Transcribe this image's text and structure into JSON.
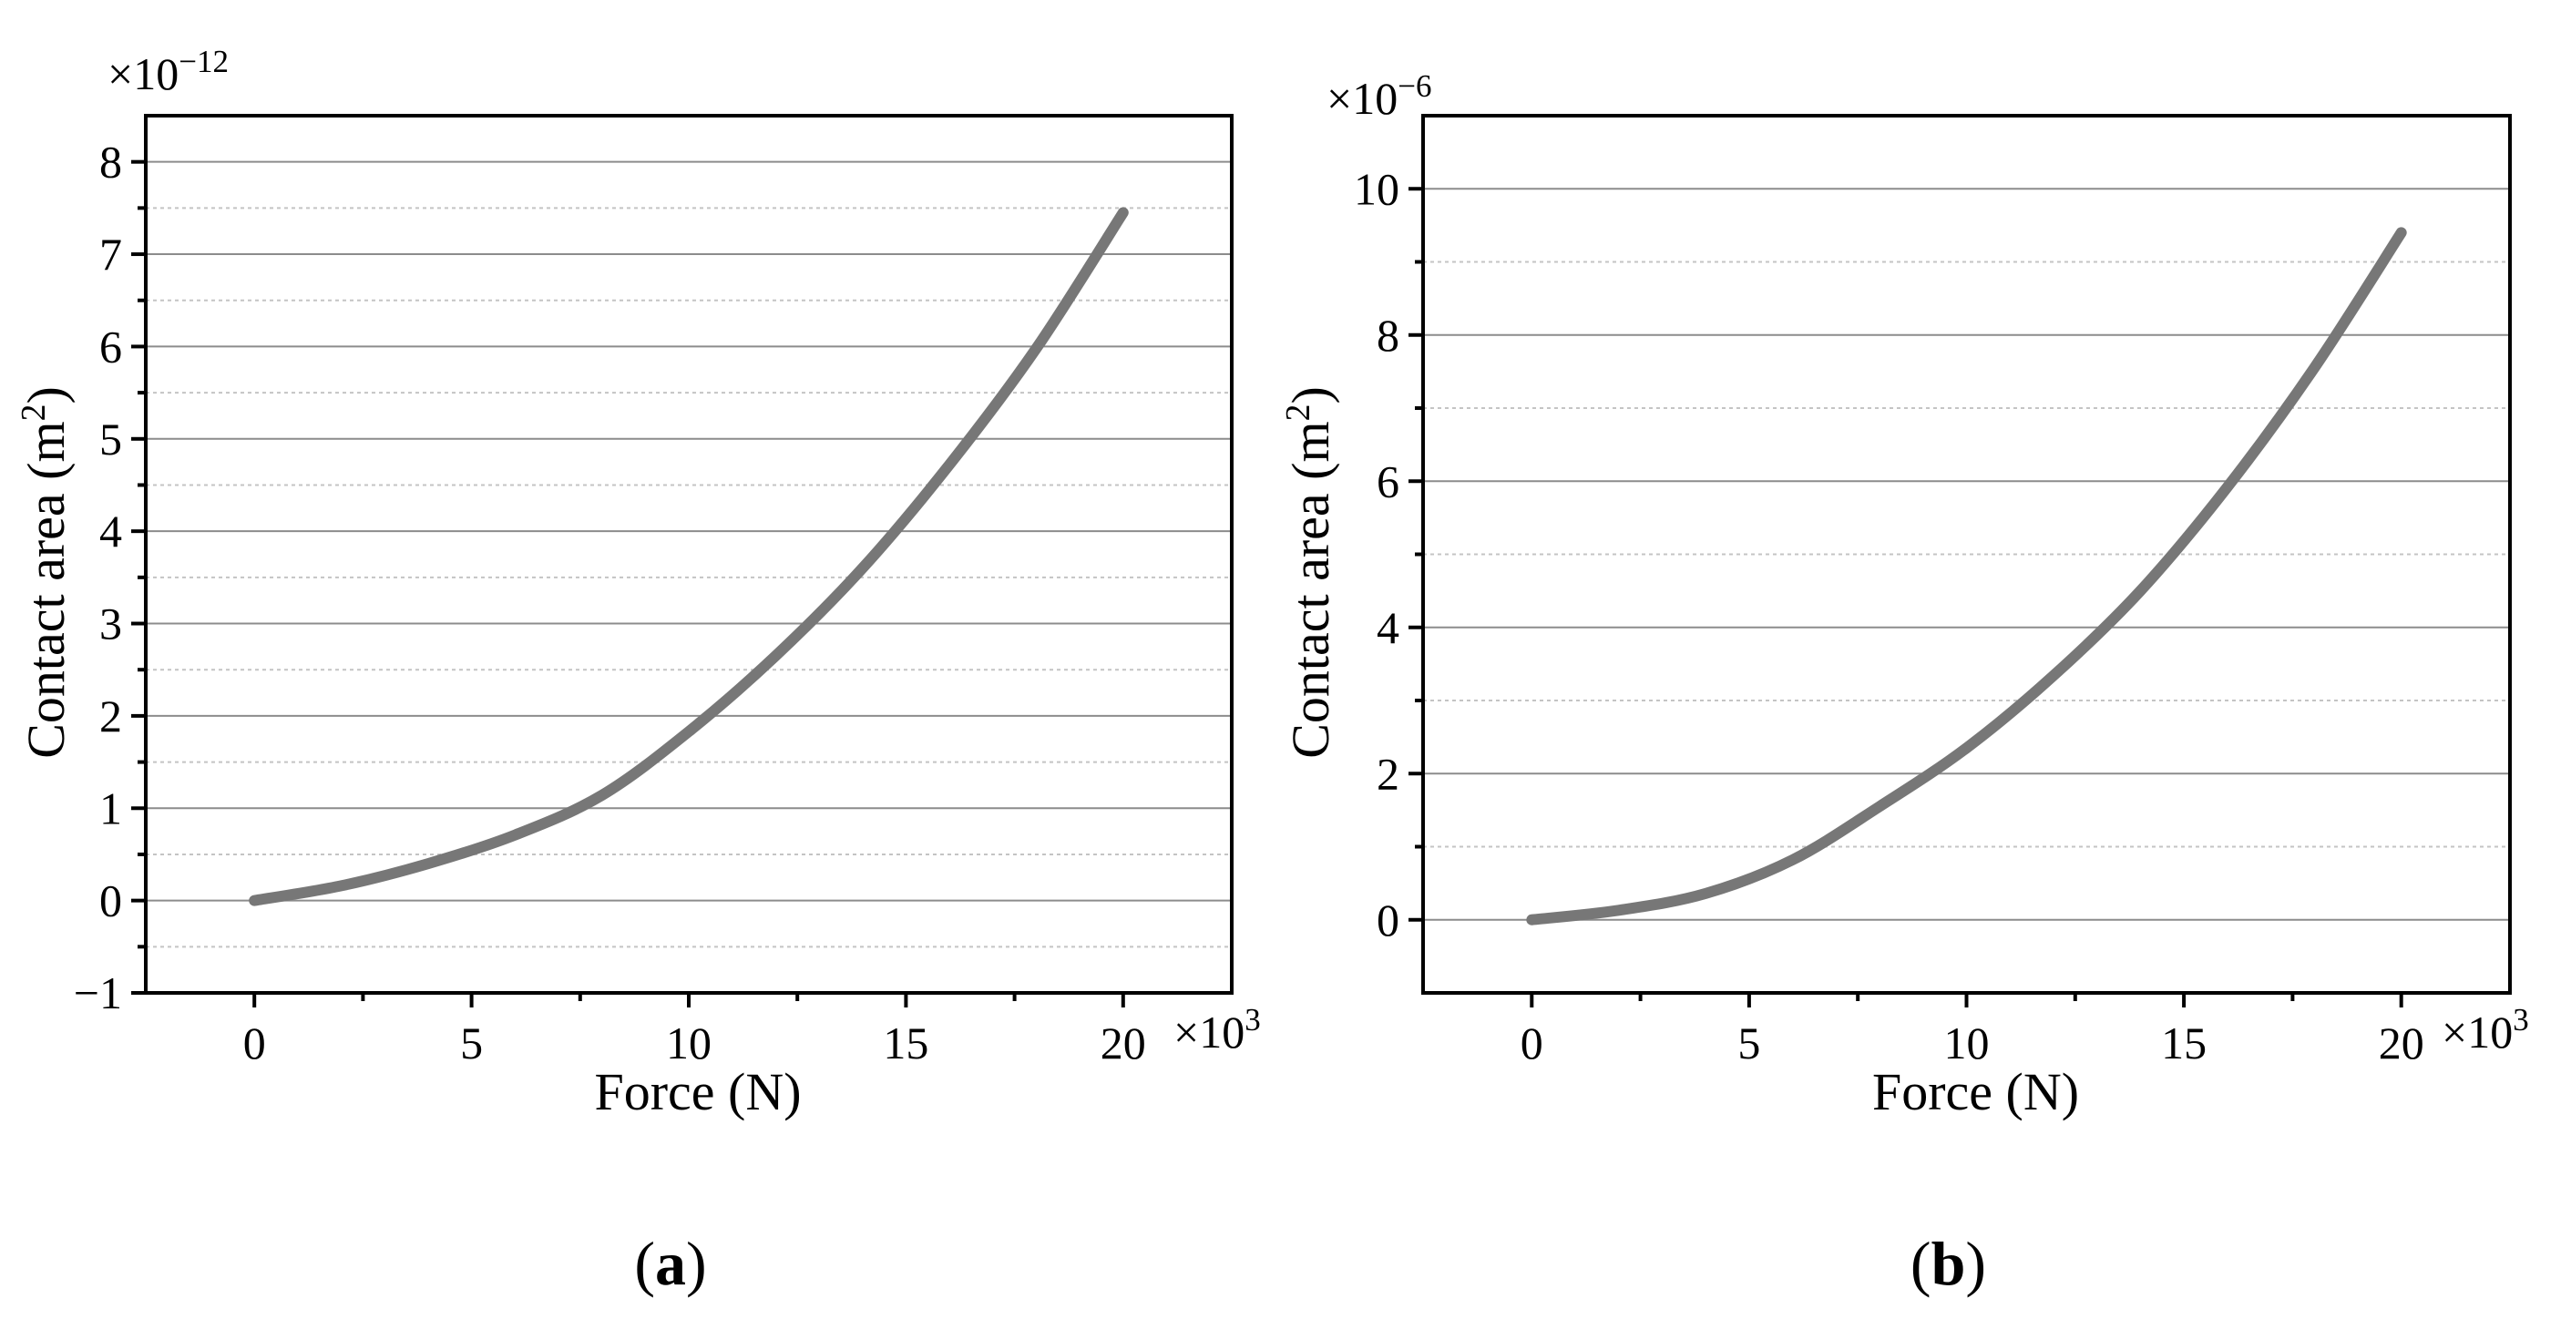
{
  "colors": {
    "curve": "#777777"
  },
  "chart_data": [
    {
      "type": "line",
      "panel_label": "a",
      "xlabel": "Force (N)",
      "ylabel": "Contact area",
      "ylabel_unit": "m",
      "ylabel_unit_exp": "2",
      "x_multiplier": "×10",
      "x_multiplier_exp": "3",
      "y_multiplier": "×10",
      "y_multiplier_exp": "−12",
      "xlim": [
        -2.5,
        22.5
      ],
      "ylim": [
        -1,
        8.5
      ],
      "x_ticks": [
        0,
        5,
        10,
        15,
        20
      ],
      "x_tick_labels": [
        "0",
        "5",
        "10",
        "15",
        "20"
      ],
      "y_ticks": [
        -1,
        0,
        1,
        2,
        3,
        4,
        5,
        6,
        7,
        8
      ],
      "y_tick_labels": [
        "−1",
        "0",
        "1",
        "2",
        "3",
        "4",
        "5",
        "6",
        "7",
        "8"
      ],
      "grid": "horizontal, major solid and minor dashed",
      "series": [
        {
          "x": [
            0,
            2,
            4,
            6,
            8,
            10,
            12,
            14,
            16,
            18,
            20
          ],
          "y": [
            0,
            0.16,
            0.4,
            0.71,
            1.14,
            1.83,
            2.65,
            3.6,
            4.72,
            5.98,
            7.45
          ]
        }
      ]
    },
    {
      "type": "line",
      "panel_label": "b",
      "xlabel": "Force (N)",
      "ylabel": "Contact area",
      "ylabel_unit": "m",
      "ylabel_unit_exp": "2",
      "x_multiplier": "×10",
      "x_multiplier_exp": "3",
      "y_multiplier": "×10",
      "y_multiplier_exp": "−6",
      "xlim": [
        -2.5,
        22.5
      ],
      "ylim": [
        -1,
        11
      ],
      "x_ticks": [
        0,
        5,
        10,
        15,
        20
      ],
      "x_tick_labels": [
        "0",
        "5",
        "10",
        "15",
        "20"
      ],
      "y_ticks": [
        0,
        2,
        4,
        6,
        8,
        10
      ],
      "y_tick_labels": [
        "0",
        "2",
        "4",
        "6",
        "8",
        "10"
      ],
      "grid": "horizontal, major solid and minor dashed",
      "series": [
        {
          "x": [
            0,
            2,
            4,
            6,
            8,
            10,
            12,
            14,
            16,
            18,
            20
          ],
          "y": [
            0,
            0.13,
            0.36,
            0.82,
            1.55,
            2.35,
            3.34,
            4.5,
            5.92,
            7.55,
            9.4
          ]
        }
      ]
    }
  ]
}
